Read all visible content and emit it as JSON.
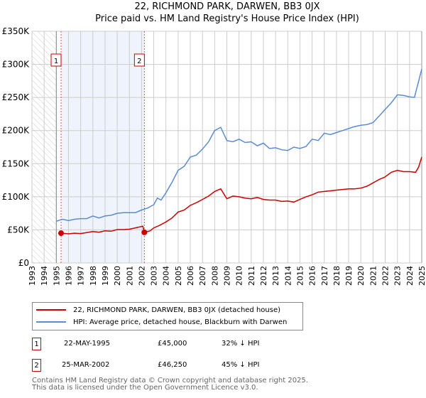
{
  "chart_data": {
    "type": "line",
    "title": "22, RICHMOND PARK, DARWEN, BB3 0JX",
    "subtitle": "Price paid vs. HM Land Registry's House Price Index (HPI)",
    "xlim": [
      1993,
      2025
    ],
    "ylim": [
      0,
      350000
    ],
    "y_ticks": [
      {
        "v": 0,
        "label": "£0"
      },
      {
        "v": 50000,
        "label": "£50K"
      },
      {
        "v": 100000,
        "label": "£100K"
      },
      {
        "v": 150000,
        "label": "£150K"
      },
      {
        "v": 200000,
        "label": "£200K"
      },
      {
        "v": 250000,
        "label": "£250K"
      },
      {
        "v": 300000,
        "label": "£300K"
      },
      {
        "v": 350000,
        "label": "£350K"
      }
    ],
    "x_ticks": [
      "1993",
      "1994",
      "1995",
      "1996",
      "1997",
      "1998",
      "1999",
      "2000",
      "2001",
      "2002",
      "2003",
      "2004",
      "2005",
      "2006",
      "2007",
      "2008",
      "2009",
      "2010",
      "2011",
      "2012",
      "2013",
      "2014",
      "2015",
      "2016",
      "2017",
      "2018",
      "2019",
      "2020",
      "2021",
      "2022",
      "2023",
      "2024",
      "2025"
    ],
    "grid": true,
    "hatched_until": 1995,
    "shaded_range": [
      1995.39,
      2002.23
    ],
    "series": [
      {
        "name": "22, RICHMOND PARK, DARWEN, BB3 0JX (detached house)",
        "color": "#cc0000",
        "x": [
          1995.39,
          1996,
          1996.5,
          1997,
          1997.5,
          1998,
          1998.5,
          1999,
          1999.5,
          2000,
          2000.5,
          2001,
          2001.5,
          2002.1,
          2002.23,
          2002.7,
          2003,
          2003.5,
          2004,
          2004.5,
          2005,
          2005.5,
          2006,
          2006.5,
          2007,
          2007.5,
          2008,
          2008.5,
          2009,
          2009.5,
          2010,
          2010.5,
          2011,
          2011.5,
          2012,
          2012.5,
          2013,
          2013.5,
          2014,
          2014.5,
          2015,
          2015.5,
          2016,
          2016.5,
          2017,
          2017.5,
          2018,
          2018.5,
          2019,
          2019.5,
          2020,
          2020.5,
          2021,
          2021.5,
          2022,
          2022.5,
          2023,
          2023.5,
          2024,
          2024.5,
          2024.75,
          2025
        ],
        "values": [
          45000,
          44000,
          45000,
          44500,
          46000,
          47500,
          46500,
          48500,
          48000,
          50500,
          50500,
          51000,
          53000,
          55500,
          46250,
          48500,
          53000,
          57000,
          62000,
          68000,
          77000,
          80000,
          87000,
          91000,
          96000,
          101000,
          108000,
          112000,
          97000,
          101000,
          100000,
          98000,
          97000,
          99000,
          96000,
          95000,
          95000,
          93000,
          93500,
          92000,
          96000,
          100000,
          103000,
          107000,
          108000,
          109000,
          110000,
          111000,
          112000,
          112000,
          113000,
          116000,
          121000,
          126000,
          130000,
          137000,
          140000,
          138000,
          138000,
          137000,
          145000,
          160000
        ]
      },
      {
        "name": "HPI: Average price, detached house, Blackburn with Darwen",
        "color": "#5b8bd0",
        "x": [
          1995,
          1995.5,
          1996,
          1996.5,
          1997,
          1997.5,
          1998,
          1998.5,
          1999,
          1999.5,
          2000,
          2000.5,
          2001,
          2001.5,
          2002,
          2002.5,
          2003,
          2003.3,
          2003.6,
          2004,
          2004.5,
          2005,
          2005.5,
          2006,
          2006.5,
          2007,
          2007.5,
          2008,
          2008.5,
          2009,
          2009.5,
          2010,
          2010.5,
          2011,
          2011.5,
          2012,
          2012.5,
          2013,
          2013.5,
          2014,
          2014.5,
          2015,
          2015.5,
          2016,
          2016.5,
          2017,
          2017.5,
          2018,
          2018.5,
          2019,
          2019.5,
          2020,
          2020.5,
          2021,
          2021.5,
          2022,
          2022.5,
          2023,
          2023.5,
          2024,
          2024.4,
          2024.75,
          2025
        ],
        "values": [
          63000,
          66000,
          64000,
          66000,
          67000,
          67000,
          71000,
          68000,
          71000,
          72000,
          75000,
          76000,
          76000,
          76000,
          80000,
          83000,
          88000,
          98000,
          95000,
          106000,
          122000,
          140000,
          146000,
          160000,
          163000,
          172000,
          183000,
          200000,
          205000,
          185000,
          183000,
          187000,
          182000,
          183000,
          177000,
          181000,
          173000,
          174000,
          171000,
          170000,
          175000,
          173000,
          176000,
          187000,
          185000,
          196000,
          194000,
          197000,
          200000,
          203000,
          206000,
          208000,
          209000,
          212000,
          222000,
          232000,
          242000,
          254000,
          253000,
          251000,
          250000,
          275000,
          293000
        ]
      }
    ],
    "markers": [
      {
        "id": "1",
        "x": 1995.39,
        "v": 45000
      },
      {
        "id": "2",
        "x": 2002.23,
        "v": 46250
      }
    ]
  },
  "legend": {
    "red": "22, RICHMOND PARK, DARWEN, BB3 0JX (detached house)",
    "blue": "HPI: Average price, detached house, Blackburn with Darwen"
  },
  "transactions": [
    {
      "id": "1",
      "date": "22-MAY-1995",
      "price": "£45,000",
      "hpi": "32% ↓ HPI"
    },
    {
      "id": "2",
      "date": "25-MAR-2002",
      "price": "£46,250",
      "hpi": "45% ↓ HPI"
    }
  ],
  "footer": {
    "line1": "Contains HM Land Registry data © Crown copyright and database right 2025.",
    "line2": "This data is licensed under the Open Government Licence v3.0."
  }
}
